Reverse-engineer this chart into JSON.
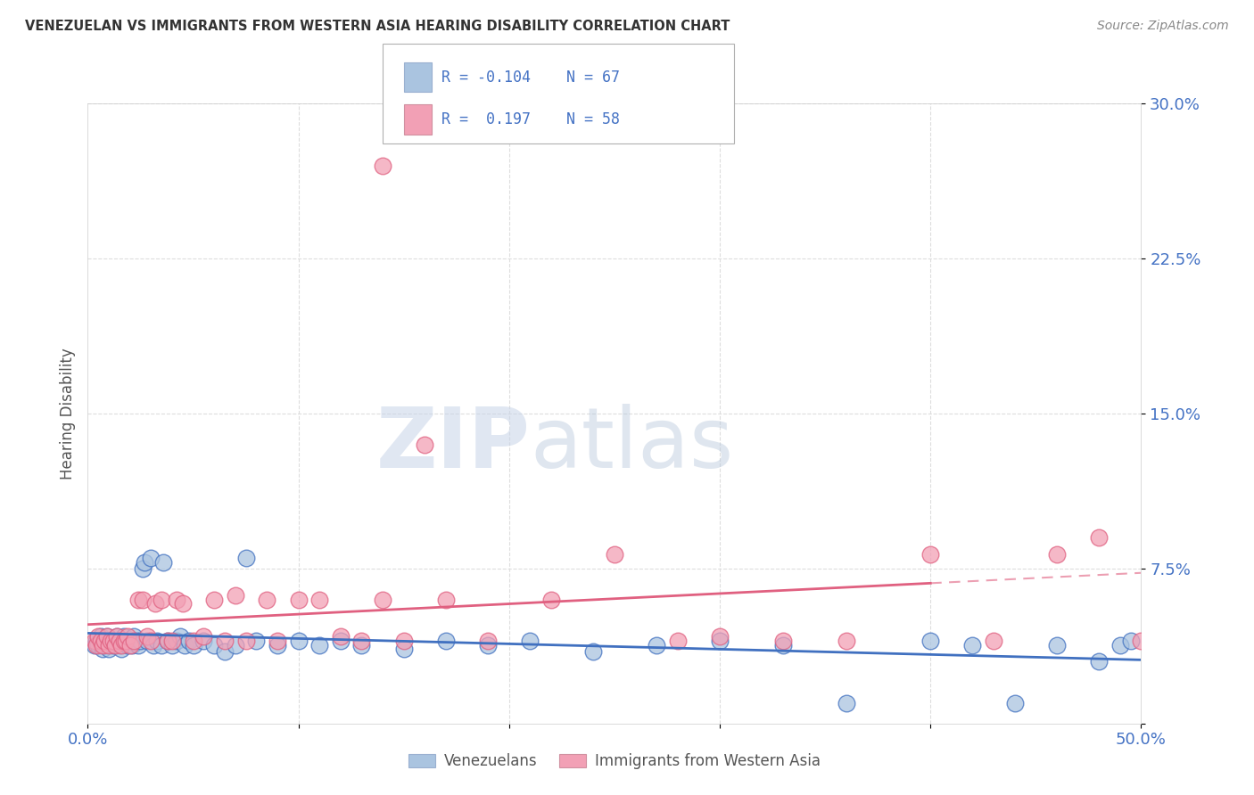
{
  "title": "VENEZUELAN VS IMMIGRANTS FROM WESTERN ASIA HEARING DISABILITY CORRELATION CHART",
  "source": "Source: ZipAtlas.com",
  "ylabel": "Hearing Disability",
  "xlim": [
    0.0,
    0.5
  ],
  "ylim": [
    0.0,
    0.3
  ],
  "xticks": [
    0.0,
    0.1,
    0.2,
    0.3,
    0.4,
    0.5
  ],
  "yticks": [
    0.0,
    0.075,
    0.15,
    0.225,
    0.3
  ],
  "ytick_labels": [
    "",
    "7.5%",
    "15.0%",
    "22.5%",
    "30.0%"
  ],
  "xtick_labels": [
    "0.0%",
    "",
    "",
    "",
    "",
    "50.0%"
  ],
  "legend_label1": "Venezuelans",
  "legend_label2": "Immigrants from Western Asia",
  "R1": "-0.104",
  "N1": "67",
  "R2": "0.197",
  "N2": "58",
  "color1": "#aac4e0",
  "color2": "#f2a0b5",
  "line_color1": "#4070c0",
  "line_color2": "#e06080",
  "watermark_zip": "ZIP",
  "watermark_atlas": "atlas",
  "venezuelan_x": [
    0.003,
    0.004,
    0.005,
    0.006,
    0.007,
    0.008,
    0.008,
    0.009,
    0.01,
    0.01,
    0.012,
    0.013,
    0.014,
    0.015,
    0.015,
    0.016,
    0.017,
    0.018,
    0.019,
    0.02,
    0.021,
    0.022,
    0.023,
    0.024,
    0.025,
    0.026,
    0.027,
    0.028,
    0.03,
    0.031,
    0.033,
    0.035,
    0.036,
    0.038,
    0.04,
    0.042,
    0.044,
    0.046,
    0.048,
    0.05,
    0.055,
    0.06,
    0.065,
    0.07,
    0.075,
    0.08,
    0.09,
    0.1,
    0.11,
    0.12,
    0.13,
    0.15,
    0.17,
    0.19,
    0.21,
    0.24,
    0.27,
    0.3,
    0.33,
    0.36,
    0.4,
    0.42,
    0.44,
    0.46,
    0.48,
    0.49,
    0.495
  ],
  "venezuelan_y": [
    0.038,
    0.04,
    0.038,
    0.042,
    0.036,
    0.04,
    0.038,
    0.042,
    0.04,
    0.036,
    0.038,
    0.04,
    0.042,
    0.038,
    0.04,
    0.036,
    0.042,
    0.04,
    0.038,
    0.04,
    0.038,
    0.042,
    0.04,
    0.038,
    0.04,
    0.075,
    0.078,
    0.04,
    0.08,
    0.038,
    0.04,
    0.038,
    0.078,
    0.04,
    0.038,
    0.04,
    0.042,
    0.038,
    0.04,
    0.038,
    0.04,
    0.038,
    0.035,
    0.038,
    0.08,
    0.04,
    0.038,
    0.04,
    0.038,
    0.04,
    0.038,
    0.036,
    0.04,
    0.038,
    0.04,
    0.035,
    0.038,
    0.04,
    0.038,
    0.01,
    0.04,
    0.038,
    0.01,
    0.038,
    0.03,
    0.038,
    0.04
  ],
  "western_asia_x": [
    0.003,
    0.004,
    0.005,
    0.006,
    0.007,
    0.008,
    0.009,
    0.01,
    0.011,
    0.012,
    0.013,
    0.014,
    0.015,
    0.016,
    0.017,
    0.018,
    0.019,
    0.02,
    0.022,
    0.024,
    0.026,
    0.028,
    0.03,
    0.032,
    0.035,
    0.038,
    0.04,
    0.042,
    0.045,
    0.05,
    0.055,
    0.06,
    0.065,
    0.07,
    0.075,
    0.085,
    0.09,
    0.1,
    0.11,
    0.12,
    0.13,
    0.14,
    0.15,
    0.17,
    0.19,
    0.22,
    0.25,
    0.28,
    0.3,
    0.33,
    0.36,
    0.4,
    0.43,
    0.46,
    0.48,
    0.5,
    0.14,
    0.16
  ],
  "western_asia_y": [
    0.04,
    0.038,
    0.042,
    0.04,
    0.038,
    0.04,
    0.042,
    0.038,
    0.04,
    0.04,
    0.038,
    0.042,
    0.04,
    0.038,
    0.04,
    0.04,
    0.042,
    0.038,
    0.04,
    0.06,
    0.06,
    0.042,
    0.04,
    0.058,
    0.06,
    0.04,
    0.04,
    0.06,
    0.058,
    0.04,
    0.042,
    0.06,
    0.04,
    0.062,
    0.04,
    0.06,
    0.04,
    0.06,
    0.06,
    0.042,
    0.04,
    0.06,
    0.04,
    0.06,
    0.04,
    0.06,
    0.082,
    0.04,
    0.042,
    0.04,
    0.04,
    0.082,
    0.04,
    0.082,
    0.09,
    0.04,
    0.27,
    0.135
  ]
}
